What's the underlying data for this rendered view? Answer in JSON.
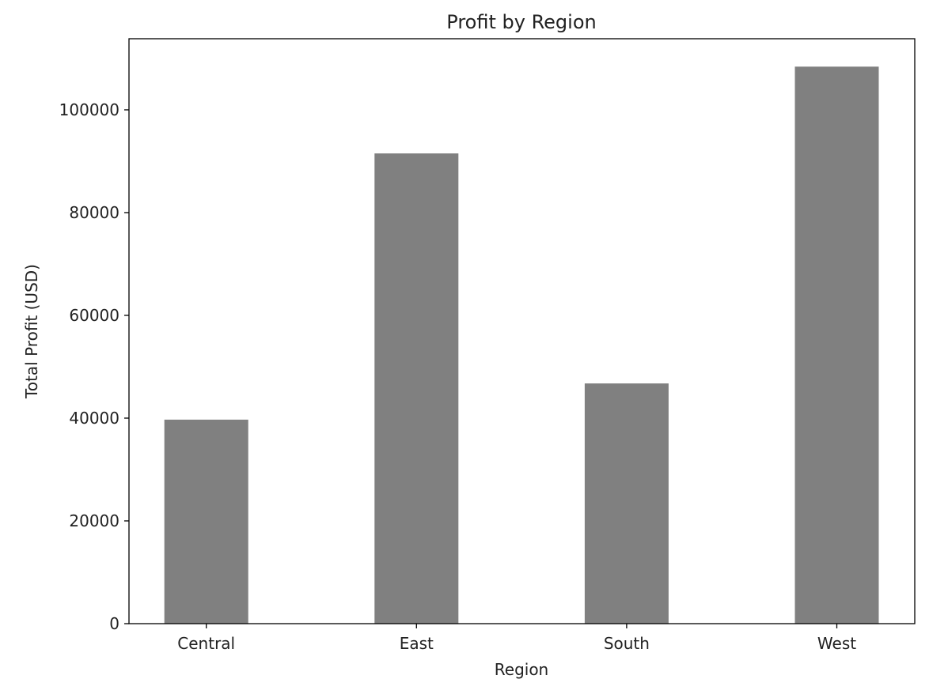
{
  "chart_data": {
    "type": "bar",
    "title": "Profit by Region",
    "xlabel": "Region",
    "ylabel": "Total Profit (USD)",
    "categories": [
      "Central",
      "East",
      "South",
      "West"
    ],
    "values": [
      39706,
      91523,
      46749,
      108418
    ],
    "ylim": [
      0,
      113841
    ],
    "yticks": [
      0,
      20000,
      40000,
      60000,
      80000,
      100000
    ],
    "ytick_labels": [
      "0",
      "20000",
      "40000",
      "60000",
      "80000",
      "100000"
    ],
    "bar_color": "#808080",
    "grid": false
  }
}
